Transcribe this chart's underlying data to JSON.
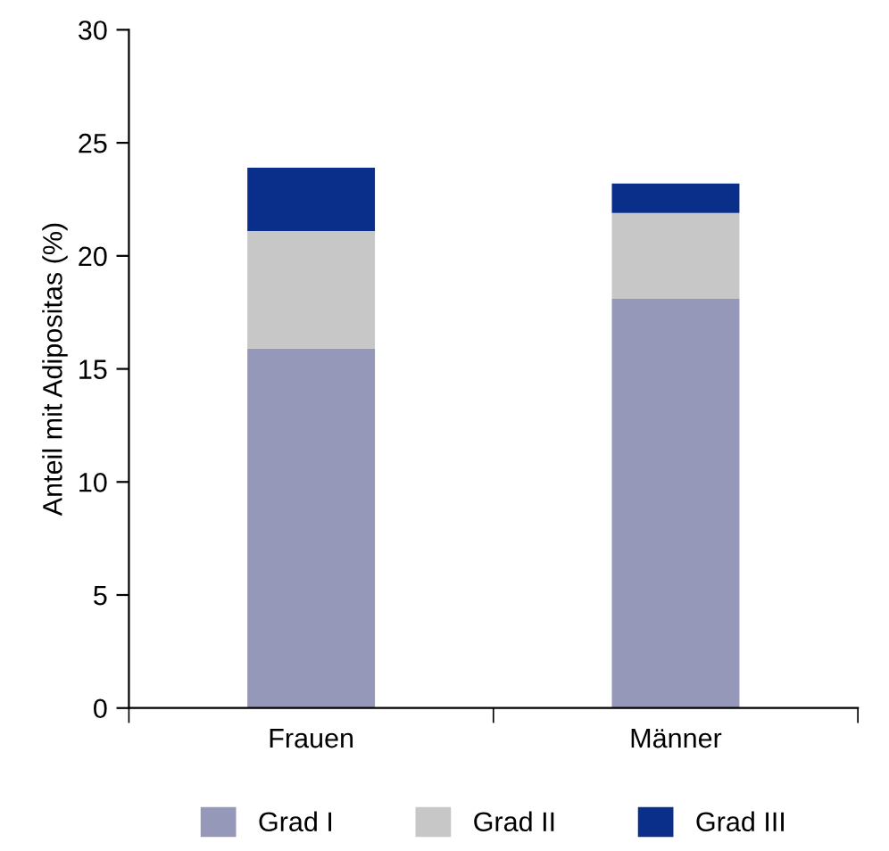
{
  "chart_data": {
    "type": "bar",
    "stacked": true,
    "ylabel": "Anteil mit Adipositas (%)",
    "categories": [
      "Frauen",
      "Männer"
    ],
    "series": [
      {
        "name": "Grad I",
        "color": "#9598b8",
        "values": [
          15.9,
          18.1
        ]
      },
      {
        "name": "Grad II",
        "color": "#c6c7c6",
        "values": [
          5.2,
          3.8
        ]
      },
      {
        "name": "Grad III",
        "color": "#0a2f8a",
        "values": [
          2.8,
          1.3
        ]
      }
    ],
    "ylim": [
      0,
      30
    ],
    "yticks": [
      0,
      5,
      10,
      15,
      20,
      25,
      30
    ],
    "grid": false,
    "legend": "bottom"
  }
}
